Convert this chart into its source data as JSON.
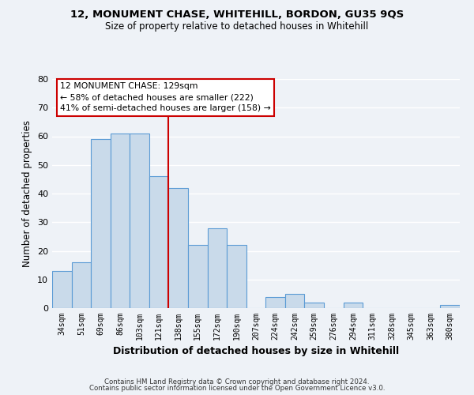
{
  "title": "12, MONUMENT CHASE, WHITEHILL, BORDON, GU35 9QS",
  "subtitle": "Size of property relative to detached houses in Whitehill",
  "xlabel": "Distribution of detached houses by size in Whitehill",
  "ylabel": "Number of detached properties",
  "bar_labels": [
    "34sqm",
    "51sqm",
    "69sqm",
    "86sqm",
    "103sqm",
    "121sqm",
    "138sqm",
    "155sqm",
    "172sqm",
    "190sqm",
    "207sqm",
    "224sqm",
    "242sqm",
    "259sqm",
    "276sqm",
    "294sqm",
    "311sqm",
    "328sqm",
    "345sqm",
    "363sqm",
    "380sqm"
  ],
  "bar_values": [
    13,
    16,
    59,
    61,
    61,
    46,
    42,
    22,
    28,
    22,
    0,
    4,
    5,
    2,
    0,
    2,
    0,
    0,
    0,
    0,
    1
  ],
  "bar_color": "#c9daea",
  "bar_edge_color": "#5b9bd5",
  "ylim": [
    0,
    80
  ],
  "yticks": [
    0,
    10,
    20,
    30,
    40,
    50,
    60,
    70,
    80
  ],
  "vline_x_index": 5.5,
  "vline_color": "#cc0000",
  "annotation_title": "12 MONUMENT CHASE: 129sqm",
  "annotation_line1": "← 58% of detached houses are smaller (222)",
  "annotation_line2": "41% of semi-detached houses are larger (158) →",
  "annotation_box_color": "#ffffff",
  "annotation_box_edge": "#cc0000",
  "background_color": "#eef2f7",
  "grid_color": "#ffffff",
  "footer1": "Contains HM Land Registry data © Crown copyright and database right 2024.",
  "footer2": "Contains public sector information licensed under the Open Government Licence v3.0."
}
